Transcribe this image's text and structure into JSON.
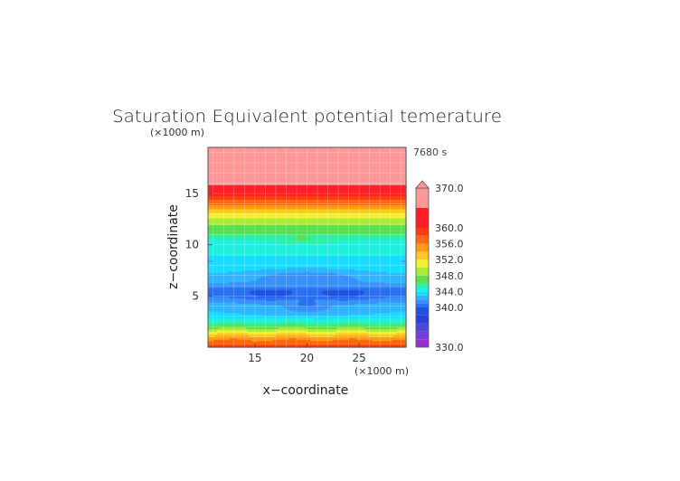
{
  "chart_data": {
    "type": "heatmap",
    "title": "Saturation Equivalent potential temerature",
    "xlabel": "x−coordinate",
    "ylabel": "z−coordinate",
    "x_unit": "(×1000 m)",
    "y_unit": "(×1000 m)",
    "time_label": "7680 s",
    "xlim": [
      10.5,
      29.5
    ],
    "ylim": [
      0,
      19.5
    ],
    "x_ticks": [
      15,
      20,
      25
    ],
    "y_ticks": [
      5,
      10,
      15
    ],
    "grid": true,
    "legend": "right",
    "colorbar_labels": [
      "370.0",
      "360.0",
      "356.0",
      "352.0",
      "348.0",
      "344.0",
      "340.0",
      "330.0"
    ],
    "colorbar_label_values": [
      370,
      360,
      356,
      352,
      348,
      344,
      340,
      330
    ],
    "colorbar_top_arrow": true,
    "color_levels": [
      {
        "min": 330,
        "max": 332,
        "color": "#9b30d0"
      },
      {
        "min": 332,
        "max": 334,
        "color": "#7040d8"
      },
      {
        "min": 334,
        "max": 336,
        "color": "#4a4ad8"
      },
      {
        "min": 336,
        "max": 338,
        "color": "#2a3ed8"
      },
      {
        "min": 338,
        "max": 340,
        "color": "#2050e0"
      },
      {
        "min": 340,
        "max": 341,
        "color": "#2a70f0"
      },
      {
        "min": 341,
        "max": 342,
        "color": "#3a90f8"
      },
      {
        "min": 342,
        "max": 343,
        "color": "#30b4ff"
      },
      {
        "min": 343,
        "max": 344,
        "color": "#18dcff"
      },
      {
        "min": 344,
        "max": 345,
        "color": "#20f0e0"
      },
      {
        "min": 345,
        "max": 346,
        "color": "#30f0a8"
      },
      {
        "min": 346,
        "max": 348,
        "color": "#5ae050"
      },
      {
        "min": 348,
        "max": 350,
        "color": "#a8ec3a"
      },
      {
        "min": 350,
        "max": 352,
        "color": "#f2f032"
      },
      {
        "min": 352,
        "max": 354,
        "color": "#ffc820"
      },
      {
        "min": 354,
        "max": 356,
        "color": "#ff9a14"
      },
      {
        "min": 356,
        "max": 358,
        "color": "#ff6a10"
      },
      {
        "min": 358,
        "max": 360,
        "color": "#ff3c10"
      },
      {
        "min": 360,
        "max": 365,
        "color": "#ff1e28"
      },
      {
        "min": 365,
        "max": 370,
        "color": "#ff9898"
      }
    ],
    "profile": {
      "z": [
        0.0,
        0.5,
        1.0,
        1.5,
        2.0,
        2.5,
        3.0,
        3.5,
        4.0,
        4.5,
        5.0,
        5.5,
        6.0,
        6.5,
        7.0,
        7.5,
        8.0,
        8.5,
        9.0,
        9.5,
        10.0,
        10.5,
        11.0,
        11.5,
        12.0,
        12.5,
        13.0,
        13.5,
        14.0,
        14.5,
        15.0,
        15.5,
        16.0,
        17.0,
        18.0,
        19.5
      ],
      "theta": [
        359,
        357,
        355,
        351,
        347,
        345,
        343.6,
        343.1,
        342.5,
        341.9,
        340.8,
        340.2,
        341.6,
        342.4,
        342.9,
        343.3,
        343.6,
        343.8,
        344.0,
        344.2,
        344.5,
        345.0,
        345.8,
        346.8,
        348.0,
        349.5,
        351.5,
        354.0,
        356.5,
        358.5,
        360.5,
        363.0,
        366.0,
        368.0,
        369.0,
        369.5
      ]
    },
    "anomalies": [
      {
        "x": 20.0,
        "z": 7.0,
        "half_width_x": 5.5,
        "half_width_z": 0.7,
        "delta": -1.5
      },
      {
        "x": 16.5,
        "z": 5.0,
        "half_width_x": 2.5,
        "half_width_z": 0.6,
        "delta": -1.0
      },
      {
        "x": 23.5,
        "z": 5.0,
        "half_width_x": 2.5,
        "half_width_z": 0.6,
        "delta": -1.0
      },
      {
        "x": 20.0,
        "z": 4.2,
        "half_width_x": 1.5,
        "half_width_z": 0.4,
        "delta": -1.5
      },
      {
        "x": 20.0,
        "z": 3.5,
        "half_width_x": 6.0,
        "half_width_z": 0.5,
        "delta": -1.0
      },
      {
        "x": 10.8,
        "z": 8.5,
        "half_width_x": 0.6,
        "half_width_z": 0.3,
        "delta": -1.0
      },
      {
        "x": 29.2,
        "z": 8.5,
        "half_width_x": 0.6,
        "half_width_z": 0.3,
        "delta": -1.0
      },
      {
        "x": 19.5,
        "z": 10.5,
        "half_width_x": 2.5,
        "half_width_z": 0.4,
        "delta": 1.0
      }
    ]
  }
}
